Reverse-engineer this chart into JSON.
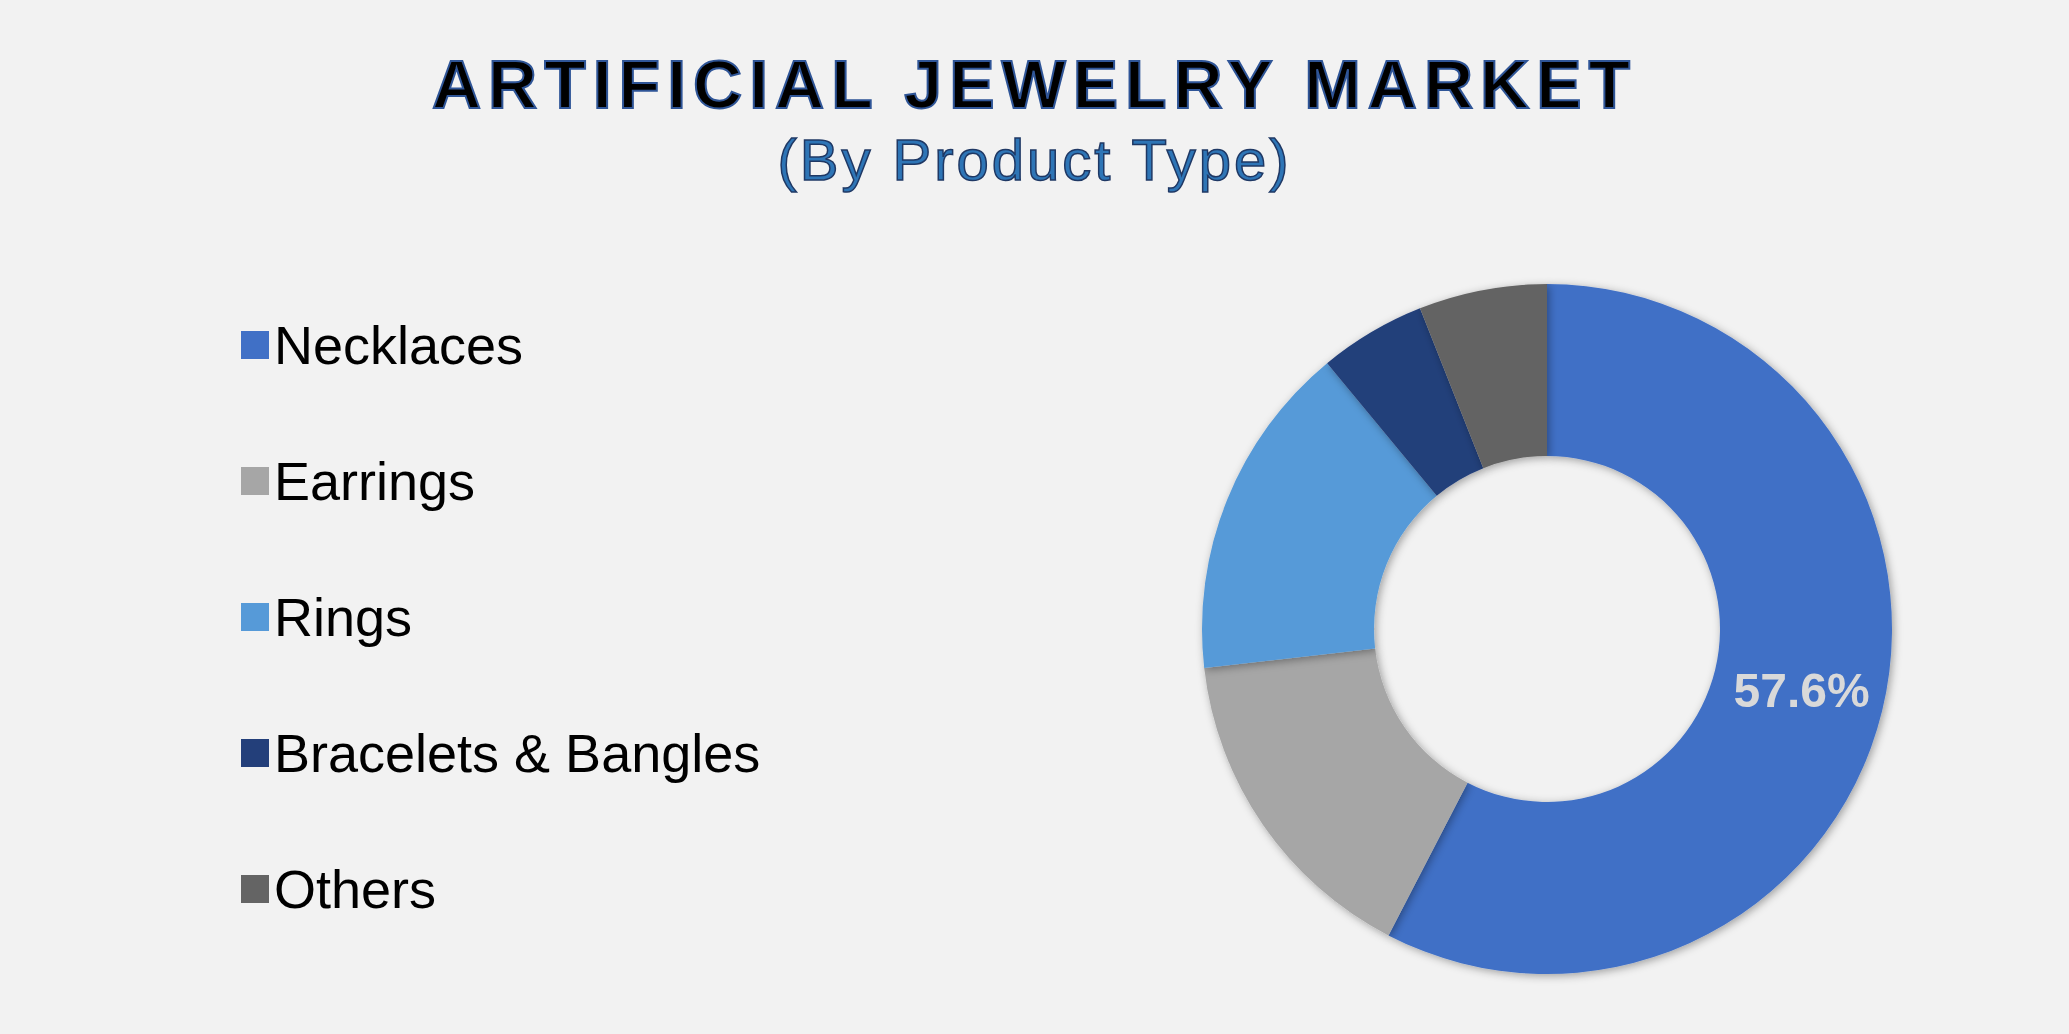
{
  "chart_data": {
    "type": "donut",
    "title": "ARTIFICIAL JEWELRY MARKET",
    "subtitle": "(By Product Type)",
    "categories": [
      "Necklaces",
      "Earrings",
      "Rings",
      "Bracelets & Bangles",
      "Others"
    ],
    "values": [
      57.6,
      15.6,
      15.8,
      5.0,
      6.0
    ],
    "colors": [
      "#4070c6",
      "#a6a6a6",
      "#569ad8",
      "#233f7a",
      "#646464"
    ],
    "value_labels": [
      "57.6%",
      null,
      null,
      null,
      null
    ],
    "legend": "left"
  }
}
